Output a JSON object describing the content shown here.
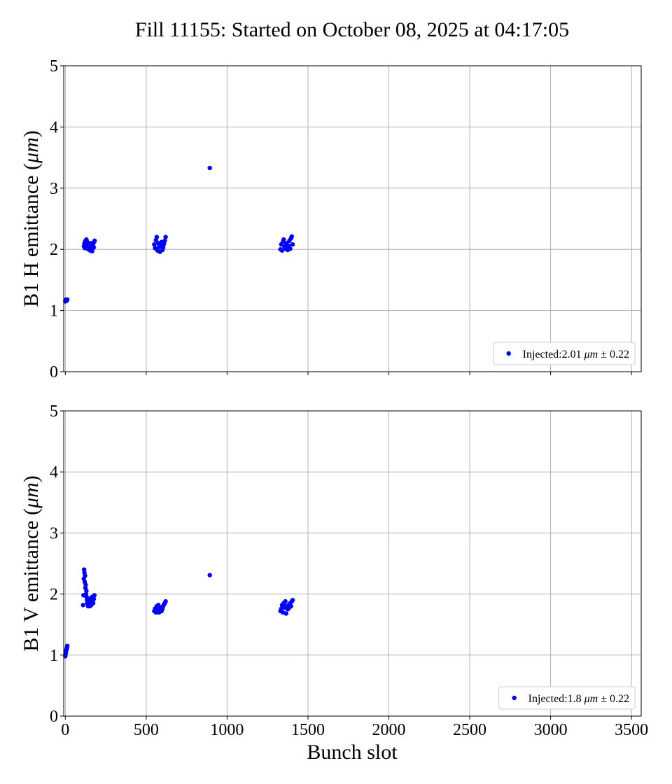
{
  "chart_data": {
    "title": "Fill 11155: Started on October 08, 2025 at 04:17:05",
    "xlabel": "Bunch slot",
    "xlim": [
      -10,
      3560
    ],
    "xticks": [
      0,
      500,
      1000,
      1500,
      2000,
      2500,
      3000,
      3500
    ],
    "grid": true,
    "panels": [
      {
        "type": "scatter",
        "ylabel_prefix": "B1 H emittance (",
        "ylabel_unit": "μm",
        "ylabel_suffix": ")",
        "ylim": [
          0,
          5
        ],
        "yticks": [
          0,
          1,
          2,
          3,
          4,
          5
        ],
        "color": "#0000ff",
        "legend_position": "lower right",
        "legend": {
          "prefix": "Injected:2.01 ",
          "unit": "μm",
          "suffix": " ± 0.22"
        },
        "x": [
          0,
          2,
          4,
          6,
          8,
          10,
          12,
          115,
          118,
          121,
          124,
          127,
          130,
          133,
          136,
          139,
          142,
          145,
          148,
          151,
          154,
          157,
          160,
          163,
          166,
          169,
          172,
          175,
          178,
          181,
          550,
          555,
          560,
          565,
          570,
          575,
          580,
          585,
          590,
          595,
          600,
          605,
          610,
          615,
          620,
          893,
          1330,
          1335,
          1340,
          1345,
          1350,
          1355,
          1360,
          1365,
          1370,
          1375,
          1380,
          1385,
          1390,
          1395,
          1400,
          1405
        ],
        "y": [
          1.15,
          1.17,
          1.16,
          1.18,
          1.16,
          1.17,
          1.18,
          2.05,
          2.1,
          2.02,
          2.14,
          2.08,
          2.16,
          2.03,
          2.12,
          2.05,
          2.0,
          2.09,
          2.06,
          2.02,
          1.98,
          2.1,
          2.04,
          2.01,
          1.97,
          2.08,
          2.06,
          2.03,
          2.12,
          2.14,
          2.08,
          2.02,
          2.15,
          2.2,
          1.98,
          2.1,
          2.04,
          1.96,
          2.06,
          2.12,
          1.99,
          2.03,
          2.09,
          2.14,
          2.2,
          3.33,
          2.0,
          2.08,
          1.98,
          2.12,
          2.16,
          2.04,
          2.01,
          2.1,
          2.03,
          1.99,
          2.06,
          2.14,
          2.01,
          2.18,
          2.21,
          2.08
        ]
      },
      {
        "type": "scatter",
        "ylabel_prefix": "B1 V emittance (",
        "ylabel_unit": "μm",
        "ylabel_suffix": ")",
        "ylim": [
          0,
          5
        ],
        "yticks": [
          0,
          1,
          2,
          3,
          4,
          5
        ],
        "color": "#0000ff",
        "legend_position": "lower right",
        "legend": {
          "prefix": "Injected:1.8 ",
          "unit": "μm",
          "suffix": " ± 0.22"
        },
        "x": [
          0,
          2,
          4,
          6,
          8,
          10,
          12,
          110,
          112,
          114,
          116,
          118,
          120,
          122,
          124,
          126,
          128,
          130,
          132,
          134,
          136,
          140,
          144,
          148,
          152,
          156,
          160,
          164,
          168,
          172,
          176,
          180,
          550,
          555,
          560,
          565,
          570,
          575,
          580,
          585,
          590,
          595,
          600,
          605,
          610,
          615,
          620,
          893,
          1330,
          1335,
          1340,
          1345,
          1350,
          1355,
          1360,
          1365,
          1370,
          1375,
          1380,
          1385,
          1390,
          1395,
          1400,
          1405
        ],
        "y": [
          0.98,
          1.02,
          1.05,
          1.08,
          1.1,
          1.12,
          1.15,
          1.82,
          1.98,
          2.25,
          2.4,
          2.35,
          2.2,
          2.3,
          2.1,
          2.15,
          2.0,
          2.05,
          1.95,
          1.9,
          1.85,
          1.8,
          1.92,
          1.85,
          1.8,
          1.9,
          1.82,
          1.95,
          1.88,
          1.85,
          1.92,
          1.98,
          1.72,
          1.76,
          1.7,
          1.8,
          1.74,
          1.82,
          1.7,
          1.75,
          1.78,
          1.72,
          1.76,
          1.8,
          1.83,
          1.85,
          1.88,
          2.31,
          1.72,
          1.76,
          1.82,
          1.7,
          1.85,
          1.78,
          1.88,
          1.68,
          1.8,
          1.75,
          1.82,
          1.78,
          1.85,
          1.8,
          1.88,
          1.9
        ]
      }
    ]
  }
}
